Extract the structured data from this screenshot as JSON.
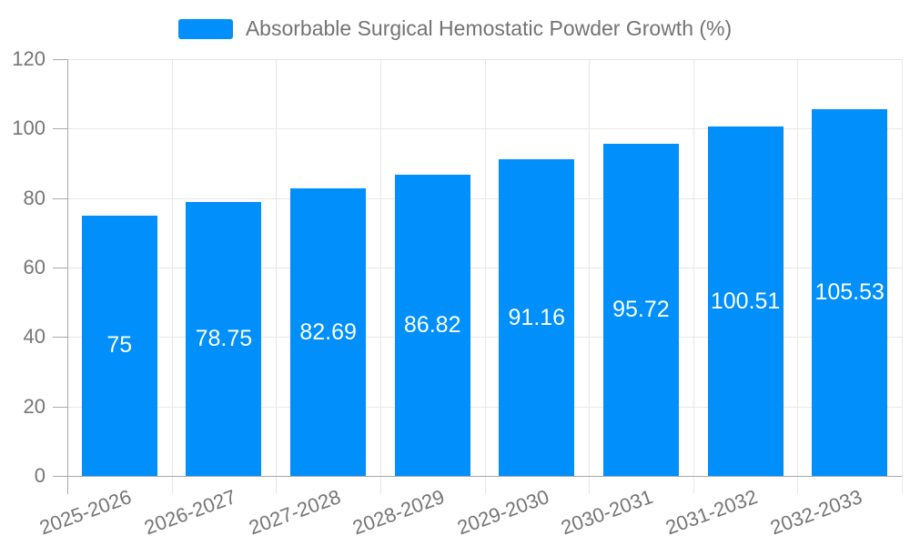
{
  "legend": {
    "marker_color": "#008FFB"
  },
  "chart_data": {
    "type": "bar",
    "title": "Absorbable Surgical Hemostatic Powder Growth (%)",
    "categories": [
      "2025-2026",
      "2026-2027",
      "2027-2028",
      "2028-2029",
      "2029-2030",
      "2030-2031",
      "2031-2032",
      "2032-2033"
    ],
    "values": [
      75,
      78.75,
      82.69,
      86.82,
      91.16,
      95.72,
      100.51,
      105.53
    ],
    "data_labels": [
      "75",
      "78.75",
      "82.69",
      "86.82",
      "91.16",
      "95.72",
      "100.51",
      "105.53"
    ],
    "ytick_labels": [
      "0",
      "20",
      "40",
      "60",
      "80",
      "100",
      "120"
    ],
    "xlabel": "",
    "ylabel": "",
    "ylim": [
      0,
      120
    ],
    "ytick_step": 20,
    "grid": true,
    "legend_position": "top",
    "colors": {
      "bar": "#008FFB",
      "data_label": "#ffffff",
      "axis_label": "#757575",
      "legend_label": "#737373",
      "gridline": "#e7e7e7",
      "axis_line": "#a9a9a9"
    }
  }
}
